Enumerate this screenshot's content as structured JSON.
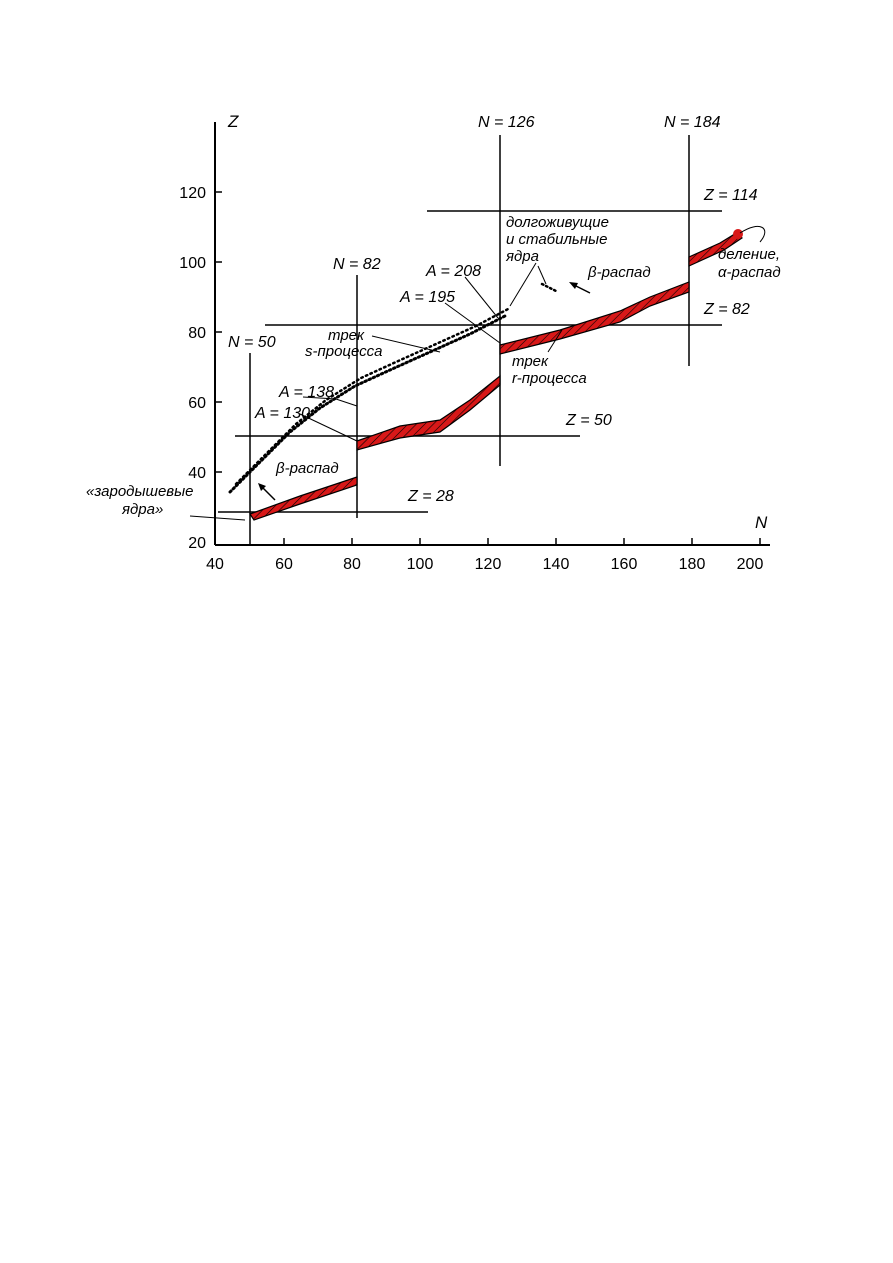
{
  "axes": {
    "x_name": "N",
    "y_name": "Z",
    "x_ticks": [
      "40",
      "60",
      "80",
      "100",
      "120",
      "140",
      "160",
      "180",
      "200"
    ],
    "y_ticks": [
      "20",
      "40",
      "60",
      "80",
      "100",
      "120"
    ]
  },
  "magic_lines": {
    "N50": "N = 50",
    "N82": "N = 82",
    "N126": "N = 126",
    "N184": "N = 184",
    "Z28": "Z = 28",
    "Z50": "Z = 50",
    "Z82": "Z = 82",
    "Z114": "Z = 114"
  },
  "labels": {
    "a208": "A = 208",
    "a195": "A = 195",
    "a138": "A = 138",
    "a130": "A = 130",
    "beta_decay_upper": "β-распад",
    "beta_decay_lower": "β-распад",
    "s_track_line1": "трек",
    "s_track_line2": "s-процесса",
    "r_track_line1": "трек",
    "r_track_line2": "r-процесса",
    "long_lived_line1": "долгоживущие",
    "long_lived_line2": "и стабильные",
    "long_lived_line3": "ядра",
    "fission_line1": "деление,",
    "fission_line2": "α-распад",
    "seed_line1": "«зародышевые",
    "seed_line2": "ядра»"
  },
  "colors": {
    "r_process_band": "#d81818",
    "lines": "#000000"
  }
}
